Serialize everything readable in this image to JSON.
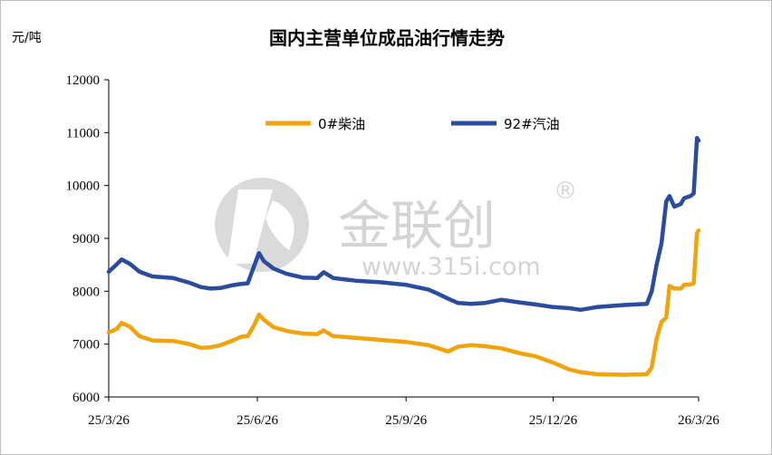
{
  "chart_data": {
    "type": "line",
    "title": "国内主营单位成品油行情走势",
    "ylabel": "元/吨",
    "xlabel": "",
    "ylim": [
      6000,
      12000
    ],
    "yticks": [
      6000,
      7000,
      8000,
      9000,
      10000,
      11000,
      12000
    ],
    "x_range": [
      "2025-03-26",
      "2026-03-26"
    ],
    "xticks": [
      "25/3/26",
      "25/6/26",
      "25/9/26",
      "25/12/26",
      "26/3/26"
    ],
    "grid": false,
    "legend_position": "top-center",
    "series": [
      {
        "name": "0#柴油",
        "color": "#F0A30A",
        "points": [
          [
            "2025-03-26",
            7220
          ],
          [
            "2025-03-31",
            7290
          ],
          [
            "2025-04-03",
            7400
          ],
          [
            "2025-04-08",
            7330
          ],
          [
            "2025-04-14",
            7150
          ],
          [
            "2025-04-22",
            7070
          ],
          [
            "2025-05-05",
            7060
          ],
          [
            "2025-05-15",
            7000
          ],
          [
            "2025-05-22",
            6930
          ],
          [
            "2025-05-28",
            6940
          ],
          [
            "2025-06-03",
            6980
          ],
          [
            "2025-06-10",
            7060
          ],
          [
            "2025-06-16",
            7140
          ],
          [
            "2025-06-20",
            7150
          ],
          [
            "2025-06-24",
            7360
          ],
          [
            "2025-06-27",
            7560
          ],
          [
            "2025-06-30",
            7460
          ],
          [
            "2025-07-06",
            7320
          ],
          [
            "2025-07-14",
            7250
          ],
          [
            "2025-07-24",
            7200
          ],
          [
            "2025-08-02",
            7190
          ],
          [
            "2025-08-06",
            7260
          ],
          [
            "2025-08-12",
            7150
          ],
          [
            "2025-08-26",
            7120
          ],
          [
            "2025-09-10",
            7080
          ],
          [
            "2025-09-26",
            7040
          ],
          [
            "2025-10-10",
            6980
          ],
          [
            "2025-10-16",
            6920
          ],
          [
            "2025-10-22",
            6860
          ],
          [
            "2025-10-28",
            6950
          ],
          [
            "2025-11-05",
            6980
          ],
          [
            "2025-11-14",
            6960
          ],
          [
            "2025-11-24",
            6920
          ],
          [
            "2025-12-05",
            6830
          ],
          [
            "2025-12-15",
            6770
          ],
          [
            "2025-12-26",
            6650
          ],
          [
            "2026-01-05",
            6520
          ],
          [
            "2026-01-12",
            6470
          ],
          [
            "2026-01-22",
            6430
          ],
          [
            "2026-02-08",
            6420
          ],
          [
            "2026-02-22",
            6430
          ],
          [
            "2026-02-25",
            6560
          ],
          [
            "2026-02-28",
            7100
          ],
          [
            "2026-03-03",
            7420
          ],
          [
            "2026-03-06",
            7500
          ],
          [
            "2026-03-08",
            8100
          ],
          [
            "2026-03-11",
            8050
          ],
          [
            "2026-03-15",
            8050
          ],
          [
            "2026-03-17",
            8120
          ],
          [
            "2026-03-21",
            8130
          ],
          [
            "2026-03-23",
            8150
          ],
          [
            "2026-03-25",
            9100
          ],
          [
            "2026-03-26",
            9150
          ]
        ]
      },
      {
        "name": "92#汽油",
        "color": "#2B4C9E",
        "points": [
          [
            "2025-03-26",
            8370
          ],
          [
            "2025-03-30",
            8480
          ],
          [
            "2025-04-03",
            8600
          ],
          [
            "2025-04-08",
            8520
          ],
          [
            "2025-04-14",
            8370
          ],
          [
            "2025-04-22",
            8280
          ],
          [
            "2025-05-05",
            8250
          ],
          [
            "2025-05-15",
            8160
          ],
          [
            "2025-05-22",
            8080
          ],
          [
            "2025-05-28",
            8050
          ],
          [
            "2025-06-03",
            8060
          ],
          [
            "2025-06-10",
            8110
          ],
          [
            "2025-06-16",
            8140
          ],
          [
            "2025-06-20",
            8150
          ],
          [
            "2025-06-24",
            8480
          ],
          [
            "2025-06-27",
            8720
          ],
          [
            "2025-06-30",
            8570
          ],
          [
            "2025-07-06",
            8430
          ],
          [
            "2025-07-14",
            8330
          ],
          [
            "2025-07-24",
            8260
          ],
          [
            "2025-08-02",
            8250
          ],
          [
            "2025-08-06",
            8360
          ],
          [
            "2025-08-12",
            8250
          ],
          [
            "2025-08-26",
            8200
          ],
          [
            "2025-09-10",
            8170
          ],
          [
            "2025-09-26",
            8120
          ],
          [
            "2025-10-10",
            8030
          ],
          [
            "2025-10-16",
            7950
          ],
          [
            "2025-10-22",
            7860
          ],
          [
            "2025-10-28",
            7780
          ],
          [
            "2025-11-05",
            7760
          ],
          [
            "2025-11-14",
            7780
          ],
          [
            "2025-11-24",
            7840
          ],
          [
            "2025-12-05",
            7790
          ],
          [
            "2025-12-15",
            7750
          ],
          [
            "2025-12-26",
            7700
          ],
          [
            "2026-01-05",
            7680
          ],
          [
            "2026-01-12",
            7650
          ],
          [
            "2026-01-22",
            7700
          ],
          [
            "2026-02-08",
            7740
          ],
          [
            "2026-02-22",
            7760
          ],
          [
            "2026-02-25",
            8000
          ],
          [
            "2026-02-28",
            8500
          ],
          [
            "2026-03-03",
            8900
          ],
          [
            "2026-03-06",
            9700
          ],
          [
            "2026-03-08",
            9800
          ],
          [
            "2026-03-11",
            9600
          ],
          [
            "2026-03-15",
            9650
          ],
          [
            "2026-03-17",
            9760
          ],
          [
            "2026-03-21",
            9800
          ],
          [
            "2026-03-23",
            9850
          ],
          [
            "2026-03-25",
            10900
          ],
          [
            "2026-03-26",
            10850
          ]
        ]
      }
    ]
  },
  "watermark": {
    "brand": "金联创",
    "registered": "®",
    "url": "www.315i.com"
  }
}
